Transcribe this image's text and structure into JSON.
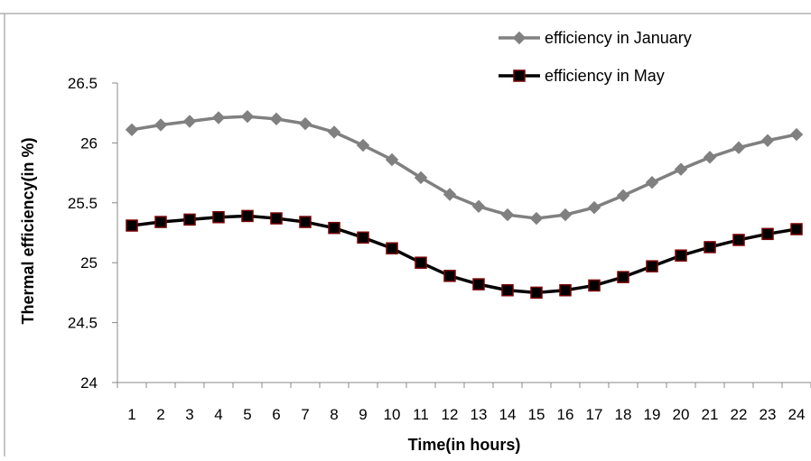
{
  "chart_data": {
    "type": "line",
    "title": "",
    "xlabel": "Time(in hours)",
    "ylabel": "Thermal efficiency(in %)",
    "categories": [
      "1",
      "2",
      "3",
      "4",
      "5",
      "6",
      "7",
      "8",
      "9",
      "10",
      "11",
      "12",
      "13",
      "14",
      "15",
      "16",
      "17",
      "18",
      "19",
      "20",
      "21",
      "22",
      "23",
      "24"
    ],
    "yticks": [
      "24",
      "24.5",
      "25",
      "25.5",
      "26",
      "26.5"
    ],
    "ylim": [
      24,
      26.5
    ],
    "grid": false,
    "legend_position": "top-right",
    "series": [
      {
        "name": "efficiency in January",
        "color": "#808080",
        "marker": "diamond",
        "values": [
          26.11,
          26.15,
          26.18,
          26.21,
          26.22,
          26.2,
          26.16,
          26.09,
          25.98,
          25.86,
          25.71,
          25.57,
          25.47,
          25.4,
          25.37,
          25.4,
          25.46,
          25.56,
          25.67,
          25.78,
          25.88,
          25.96,
          26.02,
          26.07
        ]
      },
      {
        "name": "efficiency in May",
        "color": "#000000",
        "marker": "square",
        "values": [
          25.31,
          25.34,
          25.36,
          25.38,
          25.39,
          25.37,
          25.34,
          25.29,
          25.21,
          25.12,
          25.0,
          24.89,
          24.82,
          24.77,
          24.75,
          24.77,
          24.81,
          24.88,
          24.97,
          25.06,
          25.13,
          25.19,
          25.24,
          25.28
        ]
      }
    ]
  }
}
